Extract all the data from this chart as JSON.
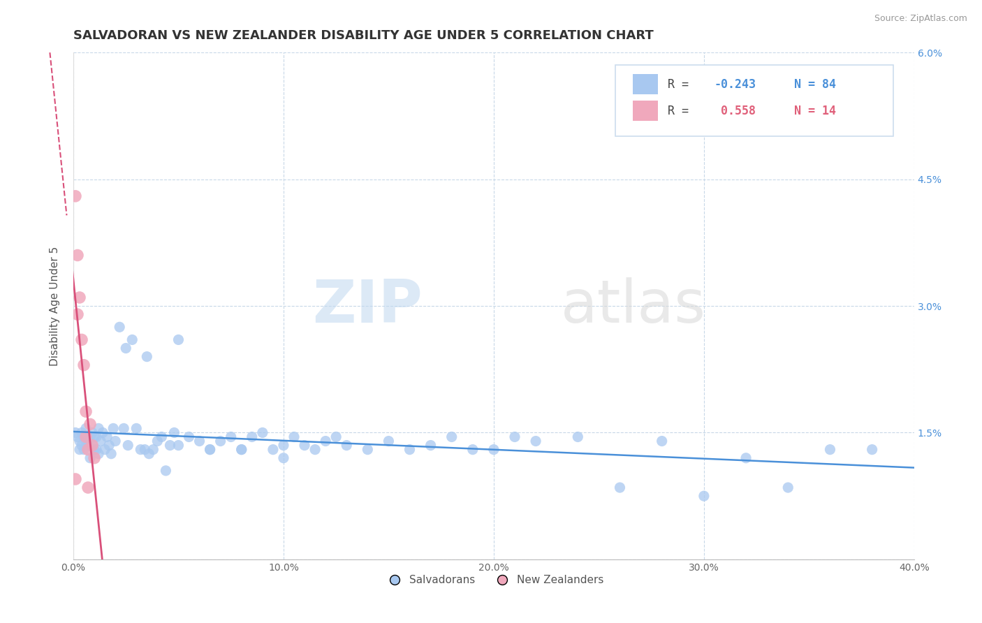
{
  "title": "SALVADORAN VS NEW ZEALANDER DISABILITY AGE UNDER 5 CORRELATION CHART",
  "source": "Source: ZipAtlas.com",
  "ylabel": "Disability Age Under 5",
  "xlim": [
    0.0,
    0.4
  ],
  "ylim": [
    0.0,
    0.06
  ],
  "xticks": [
    0.0,
    0.1,
    0.2,
    0.3,
    0.4
  ],
  "xticklabels": [
    "0.0%",
    "10.0%",
    "20.0%",
    "30.0%",
    "40.0%"
  ],
  "yticks_left": [
    0.0,
    0.015,
    0.03,
    0.045,
    0.06
  ],
  "yticklabels_left": [
    "",
    "",
    "",
    "",
    ""
  ],
  "yticks_right": [
    0.0,
    0.015,
    0.03,
    0.045,
    0.06
  ],
  "yticklabels_right": [
    "",
    "1.5%",
    "3.0%",
    "4.5%",
    "6.0%"
  ],
  "blue_dot_color": "#A8C8F0",
  "pink_dot_color": "#F0A8BC",
  "blue_line_color": "#4A90D9",
  "pink_line_color": "#D9507A",
  "legend_blue_color": "#4A90D9",
  "legend_pink_color": "#E0607A",
  "R_blue": -0.243,
  "N_blue": 84,
  "R_pink": 0.558,
  "N_pink": 14,
  "salvadoran_x": [
    0.001,
    0.002,
    0.003,
    0.003,
    0.004,
    0.004,
    0.005,
    0.005,
    0.006,
    0.006,
    0.007,
    0.007,
    0.008,
    0.008,
    0.009,
    0.009,
    0.01,
    0.01,
    0.011,
    0.011,
    0.012,
    0.012,
    0.013,
    0.014,
    0.015,
    0.016,
    0.017,
    0.018,
    0.019,
    0.02,
    0.022,
    0.024,
    0.026,
    0.028,
    0.03,
    0.032,
    0.034,
    0.036,
    0.038,
    0.04,
    0.042,
    0.044,
    0.046,
    0.048,
    0.05,
    0.055,
    0.06,
    0.065,
    0.07,
    0.075,
    0.08,
    0.085,
    0.09,
    0.095,
    0.1,
    0.105,
    0.11,
    0.115,
    0.12,
    0.125,
    0.13,
    0.14,
    0.15,
    0.16,
    0.17,
    0.18,
    0.19,
    0.2,
    0.21,
    0.22,
    0.24,
    0.26,
    0.28,
    0.3,
    0.32,
    0.34,
    0.36,
    0.38,
    0.025,
    0.035,
    0.05,
    0.065,
    0.08,
    0.1
  ],
  "salvadoran_y": [
    0.015,
    0.0145,
    0.014,
    0.013,
    0.015,
    0.0135,
    0.013,
    0.0145,
    0.014,
    0.0155,
    0.014,
    0.0135,
    0.0145,
    0.012,
    0.015,
    0.0135,
    0.0145,
    0.013,
    0.0145,
    0.013,
    0.0155,
    0.0125,
    0.014,
    0.015,
    0.013,
    0.0145,
    0.0135,
    0.0125,
    0.0155,
    0.014,
    0.0275,
    0.0155,
    0.0135,
    0.026,
    0.0155,
    0.013,
    0.013,
    0.0125,
    0.013,
    0.014,
    0.0145,
    0.0105,
    0.0135,
    0.015,
    0.0135,
    0.0145,
    0.014,
    0.013,
    0.014,
    0.0145,
    0.013,
    0.0145,
    0.015,
    0.013,
    0.0135,
    0.0145,
    0.0135,
    0.013,
    0.014,
    0.0145,
    0.0135,
    0.013,
    0.014,
    0.013,
    0.0135,
    0.0145,
    0.013,
    0.013,
    0.0145,
    0.014,
    0.0145,
    0.0085,
    0.014,
    0.0075,
    0.012,
    0.0085,
    0.013,
    0.013,
    0.025,
    0.024,
    0.026,
    0.013,
    0.013,
    0.012
  ],
  "nz_x": [
    0.001,
    0.001,
    0.002,
    0.002,
    0.003,
    0.004,
    0.005,
    0.006,
    0.006,
    0.007,
    0.007,
    0.008,
    0.009,
    0.01
  ],
  "nz_y": [
    0.043,
    0.0095,
    0.036,
    0.029,
    0.031,
    0.026,
    0.023,
    0.0175,
    0.0145,
    0.013,
    0.0085,
    0.016,
    0.0135,
    0.012
  ],
  "watermark_zip": "ZIP",
  "watermark_atlas": "atlas",
  "background_color": "#FFFFFF",
  "grid_color": "#C8D8E8",
  "title_color": "#333333",
  "ylabel_color": "#555555",
  "tick_color": "#666666",
  "right_tick_color": "#4A90D9",
  "source_color": "#999999",
  "title_fontsize": 13,
  "axis_fontsize": 11,
  "tick_fontsize": 10
}
